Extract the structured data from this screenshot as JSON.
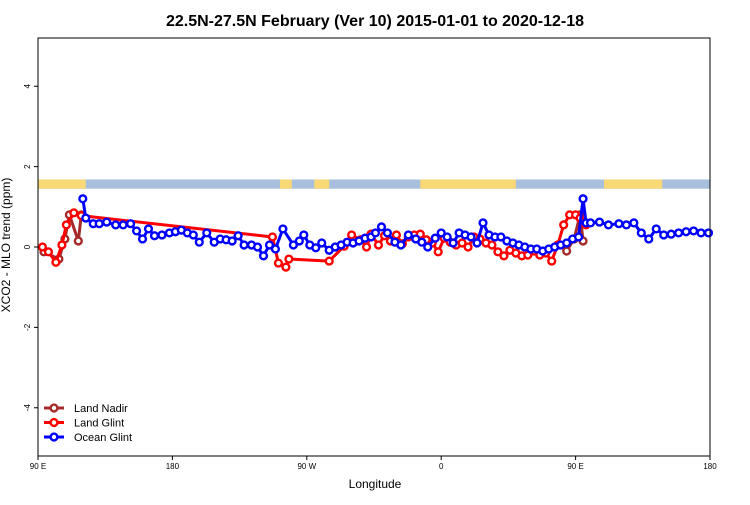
{
  "chart_data": {
    "type": "line",
    "title": "22.5N-27.5N February (Ver 10)   2015-01-01 to 2020-12-18",
    "xlabel": "Longitude",
    "ylabel": "XCO2 - MLO trend (ppm)",
    "xlim": [
      90,
      540
    ],
    "ylim": [
      -5.2,
      5.2
    ],
    "x_ticks": [
      {
        "value": 90,
        "label": "90 E"
      },
      {
        "value": 180,
        "label": "180"
      },
      {
        "value": 270,
        "label": "90 W"
      },
      {
        "value": 360,
        "label": "0"
      },
      {
        "value": 450,
        "label": "90 E"
      },
      {
        "value": 540,
        "label": "180"
      }
    ],
    "y_ticks": [
      {
        "value": -4,
        "label": "-4"
      },
      {
        "value": -2,
        "label": "-2"
      },
      {
        "value": 0,
        "label": "0"
      },
      {
        "value": 2,
        "label": "2"
      },
      {
        "value": 4,
        "label": "4"
      }
    ],
    "land_band": {
      "y_range": [
        1.45,
        1.68
      ],
      "ocean_color": "#a7bfdd",
      "land_color": "#f9d876",
      "land_segments": [
        [
          90,
          122
        ],
        [
          252,
          260
        ],
        [
          275,
          285
        ],
        [
          346,
          410
        ],
        [
          469,
          508
        ]
      ]
    },
    "legend": {
      "position": "bottom-left"
    },
    "series": [
      {
        "name": "Land Nadir",
        "color": "#a52a2a",
        "x": [
          94,
          104,
          108,
          111,
          117,
          119
        ],
        "y": [
          -0.12,
          -0.3,
          0.2,
          0.8,
          0.15,
          0.8
        ],
        "x2": [
          444,
          449,
          453,
          455
        ],
        "y2": [
          -0.1,
          0.2,
          0.8,
          0.15
        ]
      },
      {
        "name": "Land Glint",
        "color": "#ff0000",
        "x": [
          93,
          97,
          102,
          106,
          109,
          114,
          119,
          247,
          251,
          256,
          258,
          285,
          295,
          300,
          306,
          310,
          313,
          318,
          322,
          326,
          330,
          334,
          338,
          342,
          346,
          350,
          354,
          358,
          362,
          366,
          370,
          374,
          378,
          382,
          386,
          390,
          394,
          398,
          402,
          406,
          410,
          414,
          418,
          422,
          426,
          430,
          434,
          438,
          442,
          446,
          450,
          453,
          457
        ],
        "y": [
          0.0,
          -0.12,
          -0.38,
          0.05,
          0.55,
          0.85,
          0.78,
          0.25,
          -0.4,
          -0.5,
          -0.3,
          -0.35,
          0.02,
          0.3,
          0.18,
          0.0,
          0.32,
          0.05,
          0.28,
          0.15,
          0.3,
          0.08,
          0.25,
          0.3,
          0.32,
          0.18,
          0.1,
          -0.12,
          0.22,
          0.12,
          0.05,
          0.1,
          0.0,
          0.25,
          0.2,
          0.1,
          0.05,
          -0.12,
          -0.22,
          -0.08,
          -0.15,
          -0.22,
          -0.2,
          -0.1,
          -0.2,
          -0.15,
          -0.35,
          0.05,
          0.55,
          0.8,
          0.8,
          0.72,
          0.55
        ]
      },
      {
        "name": "Ocean Glint",
        "color": "#0000ff",
        "x": [
          120,
          122,
          127,
          131,
          136,
          142,
          147,
          152,
          156,
          160,
          164,
          168,
          173,
          178,
          182,
          186,
          190,
          194,
          198,
          203,
          208,
          212,
          216,
          220,
          224,
          228,
          233,
          237,
          241,
          245,
          249,
          254,
          261,
          265,
          268,
          272,
          276,
          280,
          285,
          289,
          293,
          297,
          301,
          305,
          309,
          313,
          316,
          320,
          324,
          329,
          333,
          338,
          343,
          347,
          351,
          356,
          360,
          364,
          368,
          372,
          376,
          380,
          384,
          388,
          392,
          396,
          400,
          404,
          408,
          412,
          416,
          420,
          424,
          428,
          432,
          436,
          440,
          444,
          448,
          452,
          455,
          457,
          460,
          466,
          472,
          479,
          484,
          489,
          494,
          499,
          504,
          509,
          514,
          519,
          524,
          529,
          534,
          539
        ],
        "y": [
          1.2,
          0.72,
          0.58,
          0.58,
          0.62,
          0.55,
          0.55,
          0.58,
          0.4,
          0.2,
          0.45,
          0.28,
          0.3,
          0.35,
          0.38,
          0.42,
          0.35,
          0.3,
          0.12,
          0.35,
          0.12,
          0.2,
          0.18,
          0.15,
          0.28,
          0.05,
          0.05,
          0.0,
          -0.22,
          0.05,
          -0.05,
          0.45,
          0.05,
          0.15,
          0.3,
          0.05,
          -0.02,
          0.1,
          -0.08,
          0.0,
          0.05,
          0.12,
          0.1,
          0.15,
          0.22,
          0.25,
          0.35,
          0.5,
          0.35,
          0.12,
          0.05,
          0.3,
          0.2,
          0.12,
          0.0,
          0.22,
          0.35,
          0.25,
          0.1,
          0.35,
          0.3,
          0.25,
          0.1,
          0.6,
          0.3,
          0.25,
          0.25,
          0.15,
          0.1,
          0.05,
          0.0,
          -0.05,
          -0.05,
          -0.1,
          -0.05,
          0.0,
          0.05,
          0.1,
          0.2,
          0.25,
          1.2,
          0.6,
          0.6,
          0.62,
          0.55,
          0.58,
          0.55,
          0.6,
          0.35,
          0.2,
          0.45,
          0.3,
          0.32,
          0.35,
          0.38,
          0.4,
          0.35,
          0.35
        ]
      }
    ]
  }
}
